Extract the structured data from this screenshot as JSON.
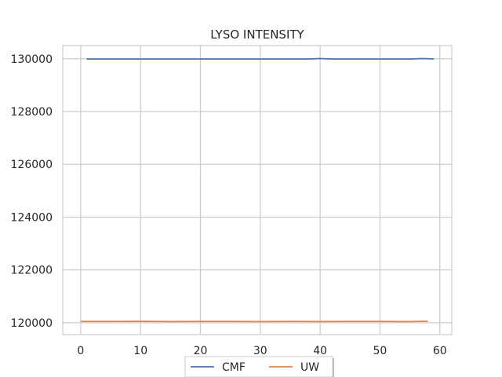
{
  "chart_data": {
    "type": "line",
    "title": "LYSO INTENSITY",
    "xlabel": "",
    "ylabel": "",
    "xlim": [
      -3,
      62
    ],
    "ylim": [
      119550,
      130500
    ],
    "xticks": [
      0,
      10,
      20,
      30,
      40,
      50,
      60
    ],
    "yticks": [
      120000,
      122000,
      124000,
      126000,
      128000,
      130000
    ],
    "grid": true,
    "legend_position": "bottom-center",
    "series": [
      {
        "name": "CMF",
        "color": "#4c72b0",
        "x": [
          1,
          5,
          10,
          15,
          20,
          25,
          30,
          35,
          38,
          40,
          42,
          45,
          50,
          55,
          57,
          59
        ],
        "y": [
          129990,
          129990,
          129992,
          129990,
          129990,
          129991,
          129990,
          129990,
          129990,
          130010,
          129990,
          129991,
          129990,
          129990,
          130010,
          129995
        ]
      },
      {
        "name": "UW",
        "color": "#dd8452",
        "x": [
          0,
          5,
          10,
          15,
          20,
          25,
          30,
          35,
          40,
          45,
          50,
          55,
          58
        ],
        "y": [
          120050,
          120048,
          120052,
          120045,
          120047,
          120049,
          120046,
          120050,
          120045,
          120048,
          120047,
          120046,
          120055
        ]
      }
    ]
  }
}
